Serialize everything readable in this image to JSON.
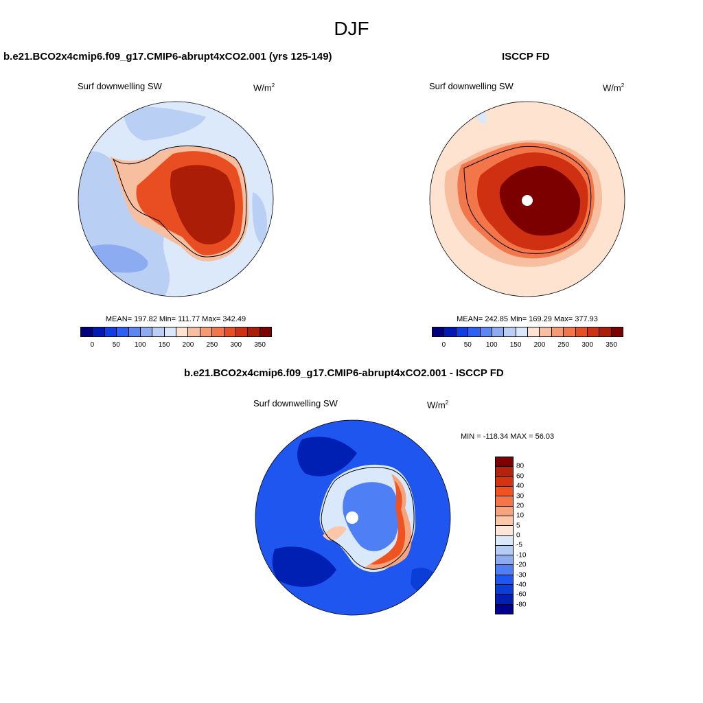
{
  "figure": {
    "title": "DJF"
  },
  "panels": [
    {
      "title": "b.e21.BCO2x4cmip6.f09_g17.CMIP6-abrupt4xCO2.001 (yrs 125-149)",
      "variable": "Surf downwelling SW",
      "units": "W/m",
      "units_sup": "2",
      "stats": "MEAN= 197.82  Min= 111.77  Max= 342.49",
      "colorbar_labels": [
        "0",
        "50",
        "100",
        "150",
        "200",
        "250",
        "300",
        "350"
      ]
    },
    {
      "title": "ISCCP FD",
      "variable": "Surf downwelling SW",
      "units": "W/m",
      "units_sup": "2",
      "stats": "MEAN= 242.85  Min= 169.29  Max= 377.93",
      "colorbar_labels": [
        "0",
        "50",
        "100",
        "150",
        "200",
        "250",
        "300",
        "350"
      ]
    },
    {
      "title": "b.e21.BCO2x4cmip6.f09_g17.CMIP6-abrupt4xCO2.001 - ISCCP FD",
      "variable": "Surf downwelling SW",
      "units": "W/m",
      "units_sup": "2",
      "stats": "MIN = -118.34 MAX =  56.03",
      "colorbar_labels": [
        "80",
        "60",
        "40",
        "30",
        "20",
        "10",
        "5",
        "0",
        "-5",
        "-10",
        "-20",
        "-30",
        "-40",
        "-60",
        "-80"
      ]
    }
  ],
  "colors": {
    "abs_scale": [
      "#00007f",
      "#001bb5",
      "#0f3fe6",
      "#2a62f5",
      "#5a87f2",
      "#8cabf0",
      "#b9cff3",
      "#d9e8fb",
      "#fde3d0",
      "#f7bfa0",
      "#f59a72",
      "#f3764a",
      "#e94e22",
      "#cf3011",
      "#ac1d08",
      "#7c0000"
    ],
    "diff_scale": [
      "#7c0000",
      "#b4230b",
      "#d8330f",
      "#f05322",
      "#f47547",
      "#f6a47c",
      "#fbc7a8",
      "#fde6d8",
      "#d9e8fb",
      "#b4cdf4",
      "#8badf0",
      "#4f7ff4",
      "#1f56ef",
      "#0a3ed6",
      "#0020b4",
      "#00008f"
    ]
  }
}
